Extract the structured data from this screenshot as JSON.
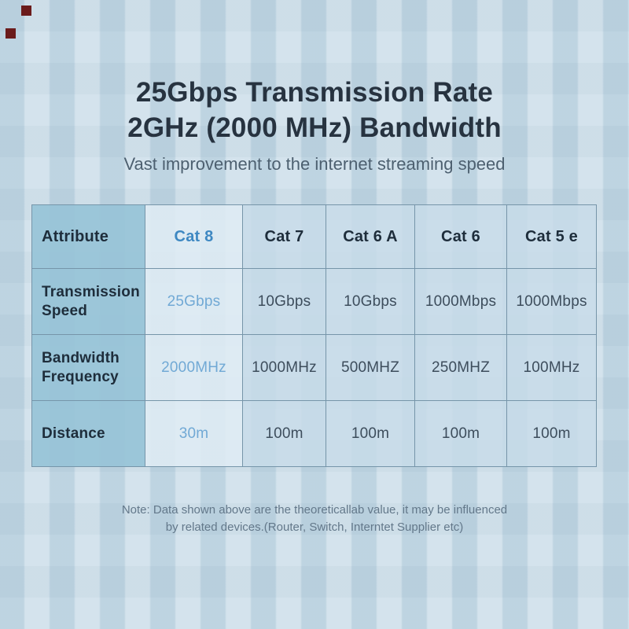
{
  "header": {
    "title_line1": "25Gbps Transmission Rate",
    "title_line2": "2GHz (2000 MHz) Bandwidth",
    "subtitle": "Vast improvement to the internet streaming speed"
  },
  "chart_data": {
    "type": "table",
    "title": "25Gbps Transmission Rate 2GHz (2000 MHz) Bandwidth",
    "subtitle": "Vast improvement to the internet streaming speed",
    "corner_label": "Attribute",
    "categories": [
      "Cat 8",
      "Cat 7",
      "Cat 6 A",
      "Cat 6",
      "Cat 5 e"
    ],
    "series": [
      {
        "name": "Transmission Speed",
        "values": [
          "25Gbps",
          "10Gbps",
          "10Gbps",
          "1000Mbps",
          "1000Mbps"
        ]
      },
      {
        "name": "Bandwidth Frequency",
        "values": [
          "2000MHz",
          "1000MHz",
          "500MHZ",
          "250MHZ",
          "100MHz"
        ]
      },
      {
        "name": "Distance",
        "values": [
          "30m",
          "100m",
          "100m",
          "100m",
          "100m"
        ]
      }
    ],
    "highlighted_category": "Cat 8",
    "note": "Note: Data shown above are the theoreticallab value, it may be influenced by related devices.(Router, Switch, Interntet Supplier etc)"
  },
  "footnote": {
    "line1": "Note: Data shown above are the theoreticallab value, it may be influenced",
    "line2": "by related devices.(Router, Switch, Interntet Supplier etc)"
  },
  "colors": {
    "background": "#cddfe9",
    "attribute_column_bg": "#a0c6d9",
    "highlight_column_bg": "#dae8f1",
    "standard_column_bg": "#c9dce9",
    "table_border": "#7695a9",
    "title_text": "#273340",
    "subtitle_text": "#4d6070",
    "header_text": "#1e2d3b",
    "value_text": "#3d4d5c",
    "accent_blue": "#3e88c2",
    "accent_blue_light": "#71a9d5",
    "note_text": "#63788a",
    "marker_red": "#6b1b1b"
  }
}
